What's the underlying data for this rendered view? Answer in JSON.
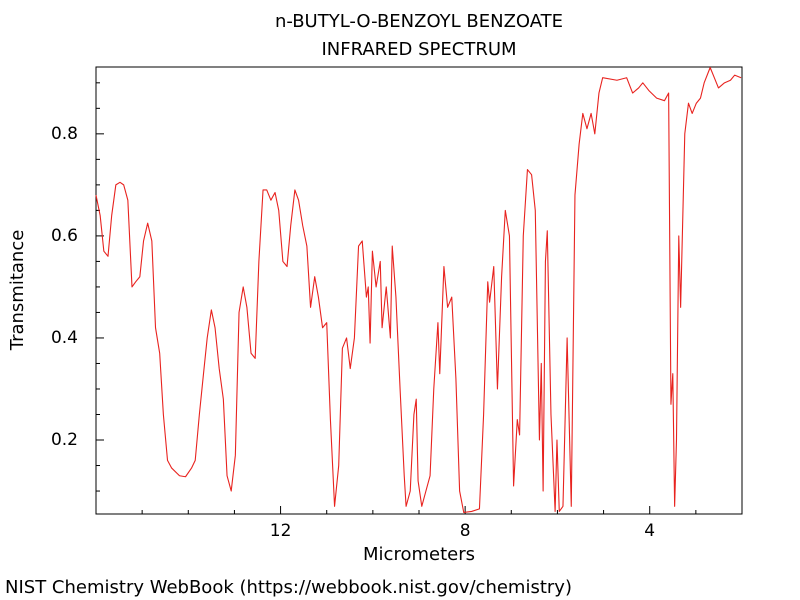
{
  "chart_data": {
    "type": "line",
    "title": "n-BUTYL-O-BENZOYL BENZOATE",
    "subtitle": "INFRARED SPECTRUM",
    "x_label": "Micrometers",
    "y_label": "Transmitance",
    "source": "NIST Chemistry WebBook (https://webbook.nist.gov/chemistry)",
    "color": "#e8231f",
    "xlim": [
      16,
      2
    ],
    "ylim": [
      0.055,
      0.931
    ],
    "xticks": [
      12,
      8,
      4
    ],
    "xminorticks": [
      15,
      14,
      13,
      11,
      10,
      9,
      7,
      6,
      5,
      3
    ],
    "yticks": [
      0.2,
      0.4,
      0.6,
      0.8
    ],
    "yminorticks": [
      0.1,
      0.15,
      0.25,
      0.3,
      0.35,
      0.45,
      0.5,
      0.55,
      0.65,
      0.7,
      0.75,
      0.85,
      0.9
    ],
    "x": [
      16.0,
      15.91,
      15.83,
      15.74,
      15.66,
      15.57,
      15.48,
      15.4,
      15.31,
      15.22,
      15.14,
      15.05,
      14.97,
      14.88,
      14.79,
      14.71,
      14.62,
      14.54,
      14.45,
      14.36,
      14.19,
      14.06,
      13.93,
      13.85,
      13.76,
      13.67,
      13.59,
      13.5,
      13.42,
      13.33,
      13.24,
      13.16,
      13.07,
      12.98,
      12.9,
      12.81,
      12.73,
      12.64,
      12.55,
      12.47,
      12.38,
      12.3,
      12.21,
      12.12,
      12.04,
      11.95,
      11.86,
      11.78,
      11.69,
      11.61,
      11.52,
      11.43,
      11.35,
      11.26,
      11.18,
      11.09,
      11.0,
      10.92,
      10.83,
      10.74,
      10.66,
      10.57,
      10.49,
      10.4,
      10.31,
      10.23,
      10.14,
      10.1,
      10.06,
      10.01,
      9.93,
      9.84,
      9.8,
      9.71,
      9.62,
      9.58,
      9.5,
      9.41,
      9.32,
      9.28,
      9.19,
      9.11,
      9.06,
      9.02,
      8.94,
      8.85,
      8.76,
      8.68,
      8.59,
      8.55,
      8.46,
      8.38,
      8.29,
      8.2,
      8.12,
      8.03,
      7.86,
      7.69,
      7.6,
      7.51,
      7.47,
      7.38,
      7.3,
      7.21,
      7.13,
      7.04,
      6.95,
      6.87,
      6.82,
      6.74,
      6.65,
      6.56,
      6.48,
      6.39,
      6.35,
      6.31,
      6.26,
      6.22,
      6.14,
      6.05,
      6.01,
      5.96,
      5.88,
      5.79,
      5.7,
      5.62,
      5.53,
      5.45,
      5.36,
      5.27,
      5.19,
      5.1,
      5.02,
      4.71,
      4.5,
      4.37,
      4.24,
      4.15,
      4.02,
      3.85,
      3.68,
      3.59,
      3.54,
      3.5,
      3.46,
      3.42,
      3.37,
      3.33,
      3.24,
      3.16,
      3.08,
      2.99,
      2.9,
      2.82,
      2.69,
      2.6,
      2.51,
      2.38,
      2.25,
      2.16,
      2.02
    ],
    "values": [
      0.68,
      0.64,
      0.57,
      0.56,
      0.64,
      0.7,
      0.705,
      0.7,
      0.67,
      0.5,
      0.51,
      0.52,
      0.59,
      0.625,
      0.59,
      0.42,
      0.37,
      0.25,
      0.16,
      0.145,
      0.13,
      0.128,
      0.145,
      0.16,
      0.25,
      0.33,
      0.4,
      0.455,
      0.42,
      0.34,
      0.28,
      0.13,
      0.1,
      0.17,
      0.45,
      0.5,
      0.46,
      0.37,
      0.36,
      0.55,
      0.69,
      0.69,
      0.67,
      0.685,
      0.65,
      0.55,
      0.54,
      0.62,
      0.69,
      0.67,
      0.62,
      0.58,
      0.46,
      0.52,
      0.48,
      0.42,
      0.43,
      0.24,
      0.07,
      0.15,
      0.38,
      0.4,
      0.34,
      0.4,
      0.58,
      0.59,
      0.48,
      0.5,
      0.39,
      0.57,
      0.5,
      0.55,
      0.42,
      0.5,
      0.4,
      0.58,
      0.48,
      0.3,
      0.13,
      0.07,
      0.1,
      0.25,
      0.28,
      0.12,
      0.07,
      0.1,
      0.13,
      0.3,
      0.43,
      0.33,
      0.54,
      0.46,
      0.48,
      0.32,
      0.1,
      0.058,
      0.06,
      0.065,
      0.25,
      0.51,
      0.47,
      0.54,
      0.3,
      0.52,
      0.65,
      0.6,
      0.11,
      0.24,
      0.21,
      0.6,
      0.73,
      0.72,
      0.65,
      0.2,
      0.35,
      0.1,
      0.55,
      0.61,
      0.25,
      0.06,
      0.2,
      0.06,
      0.07,
      0.4,
      0.07,
      0.68,
      0.78,
      0.84,
      0.81,
      0.84,
      0.8,
      0.88,
      0.91,
      0.905,
      0.91,
      0.88,
      0.89,
      0.9,
      0.885,
      0.87,
      0.865,
      0.88,
      0.27,
      0.33,
      0.07,
      0.2,
      0.6,
      0.46,
      0.8,
      0.86,
      0.84,
      0.86,
      0.87,
      0.9,
      0.93,
      0.91,
      0.89,
      0.9,
      0.905,
      0.915,
      0.91
    ]
  }
}
